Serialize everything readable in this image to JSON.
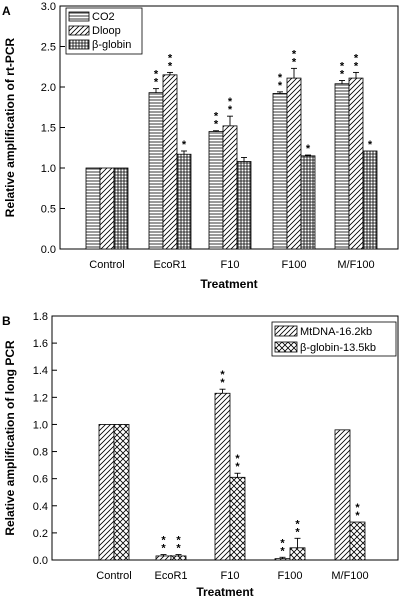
{
  "chart_data": [
    {
      "panel": "A",
      "type": "bar",
      "title": "",
      "xlabel": "Treatment",
      "ylabel": "Relative amplification of rt-PCR",
      "ylim": [
        0,
        3.0
      ],
      "yticks": [
        "0.0",
        "0.5",
        "1.0",
        "1.5",
        "2.0",
        "2.5",
        "3.0"
      ],
      "categories": [
        "Control",
        "EcoR1",
        "F10",
        "F100",
        "M/F100"
      ],
      "legend_position": "top-left",
      "series": [
        {
          "name": "CO2",
          "pattern": "hlines",
          "values": [
            1.0,
            1.93,
            1.45,
            1.92,
            2.04
          ],
          "errors": [
            0,
            0.05,
            0.01,
            0.02,
            0.04
          ],
          "sig": [
            "",
            "* *",
            "* *",
            "* *",
            "* *"
          ]
        },
        {
          "name": "Dloop",
          "pattern": "diag",
          "values": [
            1.0,
            2.15,
            1.52,
            2.11,
            2.11
          ],
          "errors": [
            0,
            0.03,
            0.12,
            0.12,
            0.07
          ],
          "sig": [
            "",
            "* *",
            "* *",
            "* *",
            "* *"
          ]
        },
        {
          "name": "β-globin",
          "pattern": "grid",
          "values": [
            1.0,
            1.17,
            1.08,
            1.15,
            1.21
          ],
          "errors": [
            0,
            0.04,
            0.05,
            0.01,
            0.0
          ],
          "sig": [
            "",
            "*",
            "",
            "*",
            "*"
          ]
        }
      ]
    },
    {
      "panel": "B",
      "type": "bar",
      "title": "",
      "xlabel": "Treatment",
      "ylabel": "Relative amplification of long PCR",
      "ylim": [
        0,
        1.8
      ],
      "yticks": [
        "0.0",
        "0.2",
        "0.4",
        "0.6",
        "0.8",
        "1.0",
        "1.2",
        "1.4",
        "1.6",
        "1.8"
      ],
      "categories": [
        "Control",
        "EcoR1",
        "F10",
        "F100",
        "M/F100"
      ],
      "legend_position": "top-right",
      "series": [
        {
          "name": "MtDNA-16.2kb",
          "pattern": "diag",
          "values": [
            1.0,
            0.03,
            1.23,
            0.01,
            0.96
          ],
          "errors": [
            0,
            0.01,
            0.03,
            0.01,
            0.0
          ],
          "sig": [
            "",
            "* *",
            "* *",
            "* *",
            ""
          ]
        },
        {
          "name": "β-globin-13.5kb",
          "pattern": "cross",
          "values": [
            1.0,
            0.03,
            0.61,
            0.09,
            0.28
          ],
          "errors": [
            0,
            0.01,
            0.03,
            0.07,
            0.0
          ],
          "sig": [
            "",
            "* *",
            "* *",
            "* *",
            "* *"
          ]
        }
      ]
    }
  ]
}
